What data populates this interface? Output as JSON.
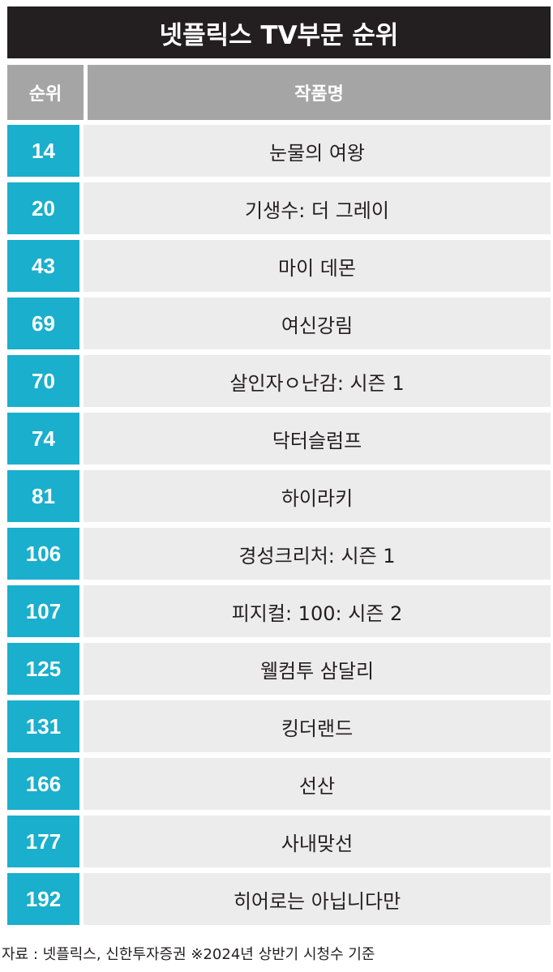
{
  "title": "넷플릭스 TV부문 순위",
  "header": {
    "rank": "순위",
    "title": "작품명"
  },
  "rows": [
    {
      "rank": "14",
      "title": "눈물의 여왕"
    },
    {
      "rank": "20",
      "title": "기생수: 더 그레이"
    },
    {
      "rank": "43",
      "title": "마이 데몬"
    },
    {
      "rank": "69",
      "title": "여신강림"
    },
    {
      "rank": "70",
      "title": "살인자ㅇ난감: 시즌 1"
    },
    {
      "rank": "74",
      "title": "닥터슬럼프"
    },
    {
      "rank": "81",
      "title": "하이라키"
    },
    {
      "rank": "106",
      "title": "경성크리처: 시즌 1"
    },
    {
      "rank": "107",
      "title": "피지컬: 100: 시즌 2"
    },
    {
      "rank": "125",
      "title": "웰컴투 삼달리"
    },
    {
      "rank": "131",
      "title": "킹더랜드"
    },
    {
      "rank": "166",
      "title": "선산"
    },
    {
      "rank": "177",
      "title": "사내맞선"
    },
    {
      "rank": "192",
      "title": "히어로는 아닙니다만"
    }
  ],
  "source": "자료 : 넷플릭스, 신한투자증권 ※2024년 상반기 시청수 기준",
  "colors": {
    "title_bg": "#231f20",
    "header_bg": "#a5a5a5",
    "rank_bg": "#1aafcc",
    "row_bg": "#ececec"
  }
}
